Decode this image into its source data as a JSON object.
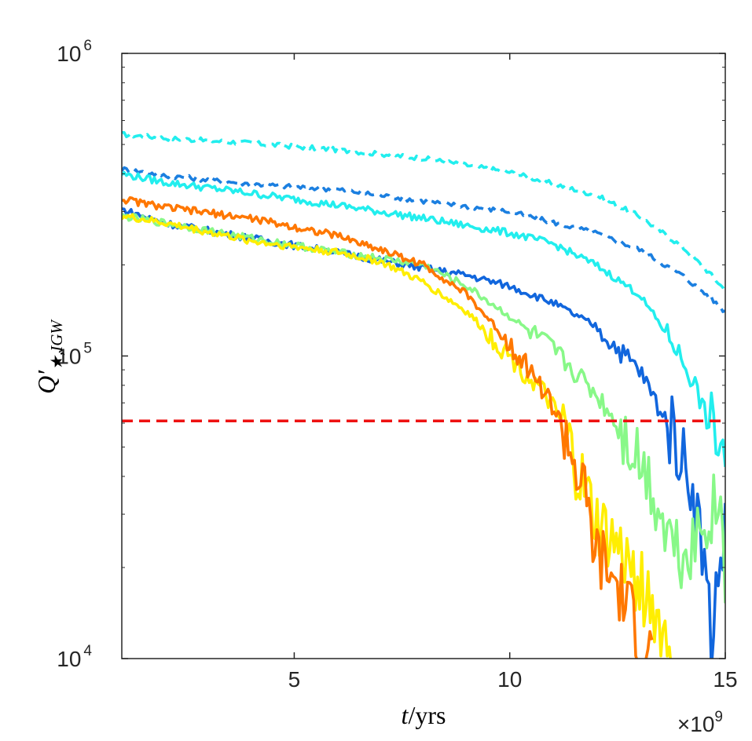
{
  "chart_data": {
    "type": "line",
    "xlabel": {
      "italic": "t",
      "rest": "/yrs"
    },
    "ylabel": {
      "symbol": "Q",
      "prime": "′",
      "subscript": "★,IGW"
    },
    "x_multiplier": {
      "prefix": "×10",
      "exponent": "9"
    },
    "xlim": [
      1000000000,
      15000000000
    ],
    "ylim": [
      10000,
      1000000
    ],
    "yscale": "log",
    "grid": false,
    "xticks": [
      {
        "value": 5000000000,
        "label": "5"
      },
      {
        "value": 10000000000,
        "label": "10"
      },
      {
        "value": 15000000000,
        "label": "15"
      }
    ],
    "yticks": [
      {
        "value": 10000,
        "base": "10",
        "exp": "4"
      },
      {
        "value": 100000,
        "base": "10",
        "exp": "5"
      },
      {
        "value": 1000000,
        "base": "10",
        "exp": "6"
      }
    ],
    "reference_line": {
      "y": 61000,
      "color": "#ee1111",
      "style": "dashed"
    },
    "series": [
      {
        "color": "#22eeee",
        "style": "dashed",
        "noise": 0.008,
        "points": [
          [
            1000000000.0,
            540000
          ],
          [
            2000000000.0,
            525000
          ],
          [
            4000000000.0,
            505000
          ],
          [
            6000000000.0,
            480000
          ],
          [
            8000000000.0,
            450000
          ],
          [
            10000000000.0,
            405000
          ],
          [
            12000000000.0,
            340000
          ],
          [
            13000000000.0,
            290000
          ],
          [
            14000000000.0,
            230000
          ],
          [
            14600000000.0,
            190000
          ],
          [
            15000000000.0,
            165000
          ]
        ]
      },
      {
        "color": "#1b7fe0",
        "style": "dashed",
        "noise": 0.008,
        "points": [
          [
            1000000000.0,
            415000
          ],
          [
            2000000000.0,
            395000
          ],
          [
            4000000000.0,
            370000
          ],
          [
            6000000000.0,
            355000
          ],
          [
            8000000000.0,
            325000
          ],
          [
            10000000000.0,
            300000
          ],
          [
            12000000000.0,
            255000
          ],
          [
            13000000000.0,
            225000
          ],
          [
            14000000000.0,
            185000
          ],
          [
            14600000000.0,
            158000
          ],
          [
            15000000000.0,
            140000
          ]
        ]
      },
      {
        "color": "#22eeee",
        "style": "solid",
        "noise": 0.012,
        "points": [
          [
            1000000000.0,
            400000
          ],
          [
            2000000000.0,
            375000
          ],
          [
            4000000000.0,
            345000
          ],
          [
            6000000000.0,
            315000
          ],
          [
            8000000000.0,
            285000
          ],
          [
            10000000000.0,
            255000
          ],
          [
            11000000000.0,
            235000
          ],
          [
            12000000000.0,
            200000
          ],
          [
            13000000000.0,
            160000
          ],
          [
            13800000000.0,
            110000
          ],
          [
            14300000000.0,
            80000
          ],
          [
            14600000000.0,
            60000
          ],
          [
            15000000000.0,
            48000
          ]
        ]
      },
      {
        "color": "#1166dd",
        "style": "solid",
        "noise": 0.012,
        "points": [
          [
            1000000000.0,
            305000
          ],
          [
            2000000000.0,
            275000
          ],
          [
            4000000000.0,
            245000
          ],
          [
            6000000000.0,
            220000
          ],
          [
            8000000000.0,
            195000
          ],
          [
            9000000000.0,
            185000
          ],
          [
            10000000000.0,
            170000
          ],
          [
            11000000000.0,
            150000
          ],
          [
            12000000000.0,
            125000
          ],
          [
            13000000000.0,
            90000
          ],
          [
            13800000000.0,
            55000
          ],
          [
            14200000000.0,
            40000
          ],
          [
            14500000000.0,
            22000
          ],
          [
            14700000000.0,
            11000
          ],
          [
            14800000000.0,
            18000
          ],
          [
            15000000000.0,
            26000
          ]
        ]
      },
      {
        "color": "#88f888",
        "style": "solid",
        "noise": 0.012,
        "points": [
          [
            1000000000.0,
            290000
          ],
          [
            2000000000.0,
            275000
          ],
          [
            4000000000.0,
            245000
          ],
          [
            6000000000.0,
            220000
          ],
          [
            7000000000.0,
            210000
          ],
          [
            8000000000.0,
            200000
          ],
          [
            9000000000.0,
            170000
          ],
          [
            10000000000.0,
            135000
          ],
          [
            11000000000.0,
            105000
          ],
          [
            12000000000.0,
            75000
          ],
          [
            12800000000.0,
            52000
          ],
          [
            13200000000.0,
            40000
          ],
          [
            13600000000.0,
            28000
          ],
          [
            14000000000.0,
            22000
          ],
          [
            14500000000.0,
            28000
          ],
          [
            14900000000.0,
            34000
          ],
          [
            15000000000.0,
            15000
          ]
        ]
      },
      {
        "color": "#ffee00",
        "style": "solid",
        "noise": 0.012,
        "points": [
          [
            1000000000.0,
            290000
          ],
          [
            2000000000.0,
            275000
          ],
          [
            4000000000.0,
            240000
          ],
          [
            6000000000.0,
            220000
          ],
          [
            7000000000.0,
            205000
          ],
          [
            8000000000.0,
            175000
          ],
          [
            9000000000.0,
            140000
          ],
          [
            10000000000.0,
            100000
          ],
          [
            10800000000.0,
            75000
          ],
          [
            11200000000.0,
            60000
          ],
          [
            11600000000.0,
            40000
          ],
          [
            12000000000.0,
            28000
          ],
          [
            12600000000.0,
            22000
          ],
          [
            13200000000.0,
            16000
          ],
          [
            13800000000.0,
            10000
          ]
        ]
      },
      {
        "color": "#ff7700",
        "style": "solid",
        "noise": 0.012,
        "points": [
          [
            1000000000.0,
            330000
          ],
          [
            2000000000.0,
            310000
          ],
          [
            4000000000.0,
            285000
          ],
          [
            6000000000.0,
            250000
          ],
          [
            7000000000.0,
            225000
          ],
          [
            8000000000.0,
            200000
          ],
          [
            9000000000.0,
            160000
          ],
          [
            10000000000.0,
            110000
          ],
          [
            10600000000.0,
            85000
          ],
          [
            11000000000.0,
            68000
          ],
          [
            11300000000.0,
            55000
          ],
          [
            11700000000.0,
            35000
          ],
          [
            12000000000.0,
            22000
          ],
          [
            12500000000.0,
            17000
          ],
          [
            13000000000.0,
            12000
          ],
          [
            13300000000.0,
            10000
          ]
        ]
      }
    ]
  }
}
